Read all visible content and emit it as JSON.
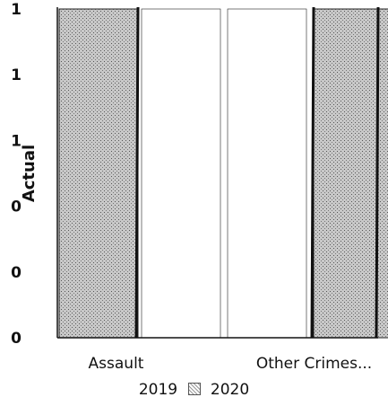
{
  "chart_data": {
    "type": "bar",
    "categories": [
      "Assault",
      "Other Crimes..."
    ],
    "series": [
      {
        "name": "2019",
        "values": [
          1.0,
          1.0
        ]
      },
      {
        "name": "2020",
        "values": [
          1.0,
          1.0
        ]
      }
    ],
    "ylabel": "Actual",
    "xlabel": "",
    "ylim": [
      0,
      1.0
    ],
    "yticks": [
      0,
      0.2,
      0.4,
      0.6,
      0.8,
      1.0
    ],
    "ytick_labels": [
      "0",
      "0",
      "0",
      "1",
      "1",
      "1"
    ],
    "legend_position": "bottom",
    "grid": false,
    "colors": {
      "series_2019": "#ffffff",
      "series_2020": "#c8c8c8",
      "axis": "#111111"
    }
  }
}
